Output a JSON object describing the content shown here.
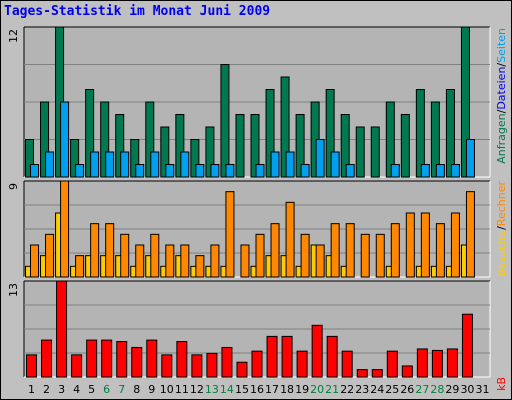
{
  "title": "Tages-Statistik im Monat Juni 2009",
  "colors": {
    "background": "#c0c0c0",
    "plot_bg": "#b4b4b4",
    "hits": "#007850",
    "files": "#00a0f0",
    "sites": "#ffcc00",
    "visits": "#ff8800",
    "kbytes": "#ff0000",
    "weekend_day": "#008040",
    "weekday": "#000000",
    "title": "#0000ee"
  },
  "right_labels": {
    "hits": "Anfragen",
    "files": "Dateien",
    "pages": "Seiten",
    "visits": "Besuche",
    "sites": "Rechner",
    "kbytes": "kB"
  },
  "chart_data": [
    {
      "type": "bar",
      "panel": "requests",
      "ymax_label": "12",
      "ylim": [
        0,
        12
      ],
      "categories": [
        "1",
        "2",
        "3",
        "4",
        "5",
        "6",
        "7",
        "8",
        "9",
        "10",
        "11",
        "12",
        "13",
        "14",
        "15",
        "16",
        "17",
        "18",
        "19",
        "20",
        "21",
        "22",
        "23",
        "24",
        "25",
        "26",
        "27",
        "28",
        "29",
        "30",
        "31"
      ],
      "weekend_days": [
        "6",
        "7",
        "13",
        "14",
        "20",
        "21",
        "27",
        "28"
      ],
      "series": [
        {
          "name": "Anfragen",
          "values": [
            3,
            6,
            12,
            3,
            7,
            6,
            5,
            3,
            6,
            4,
            5,
            3,
            4,
            9,
            5,
            5,
            7,
            8,
            5,
            6,
            7,
            5,
            4,
            4,
            6,
            5,
            7,
            6,
            7,
            12,
            0
          ]
        },
        {
          "name": "Dateien",
          "values": [
            1,
            2,
            6,
            1,
            2,
            2,
            2,
            1,
            2,
            1,
            2,
            1,
            1,
            1,
            0,
            1,
            2,
            2,
            1,
            3,
            2,
            1,
            0,
            0,
            1,
            0,
            1,
            1,
            1,
            3,
            0
          ]
        }
      ]
    },
    {
      "type": "bar",
      "panel": "visits",
      "ymax_label": "9",
      "ylim": [
        0,
        9
      ],
      "categories": [
        "1",
        "2",
        "3",
        "4",
        "5",
        "6",
        "7",
        "8",
        "9",
        "10",
        "11",
        "12",
        "13",
        "14",
        "15",
        "16",
        "17",
        "18",
        "19",
        "20",
        "21",
        "22",
        "23",
        "24",
        "25",
        "26",
        "27",
        "28",
        "29",
        "30",
        "31"
      ],
      "series": [
        {
          "name": "Rechner",
          "values": [
            1,
            2,
            6,
            1,
            2,
            2,
            2,
            1,
            2,
            1,
            2,
            1,
            1,
            1,
            0,
            1,
            2,
            2,
            1,
            3,
            2,
            1,
            0,
            0,
            1,
            0,
            1,
            1,
            1,
            3,
            0
          ]
        },
        {
          "name": "Besuche",
          "values": [
            3,
            4,
            9,
            2,
            5,
            5,
            4,
            3,
            4,
            3,
            3,
            2,
            3,
            8,
            3,
            4,
            5,
            7,
            4,
            3,
            5,
            5,
            4,
            4,
            5,
            6,
            6,
            5,
            6,
            8,
            0
          ]
        }
      ]
    },
    {
      "type": "bar",
      "panel": "kbytes",
      "ymax_label": "13",
      "ylim": [
        0,
        13
      ],
      "categories": [
        "1",
        "2",
        "3",
        "4",
        "5",
        "6",
        "7",
        "8",
        "9",
        "10",
        "11",
        "12",
        "13",
        "14",
        "15",
        "16",
        "17",
        "18",
        "19",
        "20",
        "21",
        "22",
        "23",
        "24",
        "25",
        "26",
        "27",
        "28",
        "29",
        "30",
        "31"
      ],
      "series": [
        {
          "name": "kB",
          "values": [
            3,
            5,
            13,
            3,
            5,
            5,
            4.8,
            4,
            5,
            3,
            4.8,
            3,
            3.2,
            4,
            2,
            3.5,
            5.5,
            5.5,
            3.5,
            7,
            5.5,
            3.5,
            1,
            1,
            3.5,
            1.5,
            3.8,
            3.6,
            3.8,
            8.5,
            0
          ]
        }
      ]
    }
  ]
}
